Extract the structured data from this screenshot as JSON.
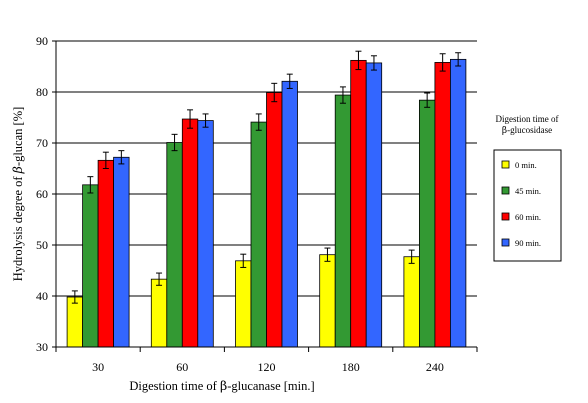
{
  "chart_data": {
    "type": "bar",
    "xlabel_prefix": "Digestion time of ",
    "xlabel_greek": "β",
    "xlabel_suffix": "-glucanase [min.]",
    "ylabel_prefix": "Hydrolysis degree of ",
    "ylabel_greek": "β",
    "ylabel_suffix": "-glucan [%]",
    "ylim": [
      30,
      90
    ],
    "yticks": [
      30,
      40,
      50,
      60,
      70,
      80,
      90
    ],
    "grid": true,
    "categories": [
      "30",
      "60",
      "120",
      "180",
      "240"
    ],
    "series": [
      {
        "name": "0 min.",
        "color": "#ffff00",
        "values": [
          39.8,
          43.3,
          46.9,
          48.1,
          47.7
        ],
        "errors": [
          1.2,
          1.2,
          1.3,
          1.3,
          1.3
        ]
      },
      {
        "name": "45 min.",
        "color": "#339933",
        "values": [
          61.8,
          70.1,
          74.1,
          79.4,
          78.4
        ],
        "errors": [
          1.6,
          1.6,
          1.6,
          1.6,
          1.4
        ]
      },
      {
        "name": "60 min.",
        "color": "#ff0000",
        "values": [
          66.6,
          74.7,
          79.9,
          86.2,
          85.8
        ],
        "errors": [
          1.6,
          1.8,
          1.8,
          1.8,
          1.7
        ]
      },
      {
        "name": "90 min.",
        "color": "#3366ff",
        "values": [
          67.2,
          74.4,
          82.1,
          85.7,
          86.4
        ],
        "errors": [
          1.3,
          1.3,
          1.4,
          1.4,
          1.3
        ]
      }
    ],
    "legend": {
      "placement": "right",
      "title_line1": "Digestion time of",
      "title_line2_greek": "β",
      "title_line2_suffix": "-glucosidase"
    }
  }
}
